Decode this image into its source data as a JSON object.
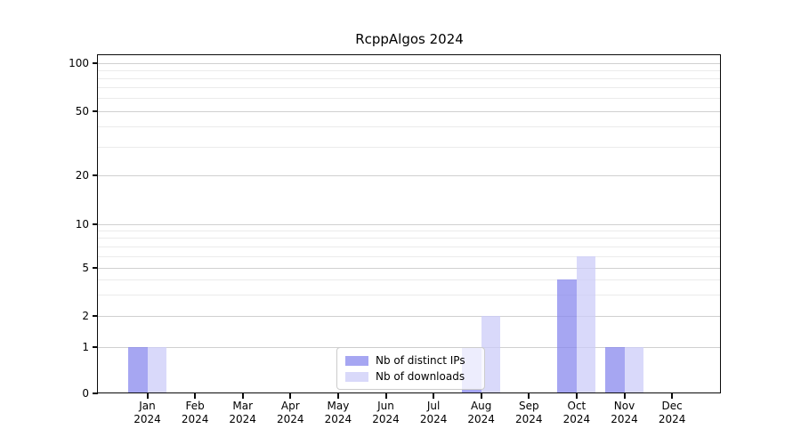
{
  "chart_data": {
    "type": "bar",
    "title": "RcppAlgos 2024",
    "categories": [
      "Jan",
      "Feb",
      "Mar",
      "Apr",
      "May",
      "Jun",
      "Jul",
      "Aug",
      "Sep",
      "Oct",
      "Nov",
      "Dec"
    ],
    "x_tick_year": "2024",
    "series": [
      {
        "name": "Nb of distinct IPs",
        "color": "#8888ee",
        "alpha": 0.75,
        "values": [
          1,
          0,
          0,
          0,
          0,
          0,
          0,
          1,
          0,
          4,
          1,
          0
        ]
      },
      {
        "name": "Nb of downloads",
        "color": "#ccccf8",
        "alpha": 0.75,
        "values": [
          1,
          0,
          0,
          0,
          0,
          0,
          0,
          2,
          0,
          6,
          1,
          0
        ]
      }
    ],
    "y_axis": {
      "ticks": [
        0,
        1,
        2,
        5,
        10,
        20,
        50,
        100
      ],
      "minor_ticks": [
        3,
        4,
        6,
        7,
        8,
        9,
        30,
        40,
        60,
        70,
        80,
        90
      ],
      "scale": "log-like",
      "range_labels": [
        "0",
        "1",
        "2",
        "5",
        "10",
        "20",
        "50",
        "100"
      ]
    },
    "legend_position": "lower center",
    "grid": true
  },
  "colors": {
    "background": "#ffffff",
    "spine": "#0a0a0a",
    "major_grid": "#d0d0d0",
    "minor_grid": "#ebebeb",
    "legend_border": "#cccccc",
    "text": "#000000"
  }
}
